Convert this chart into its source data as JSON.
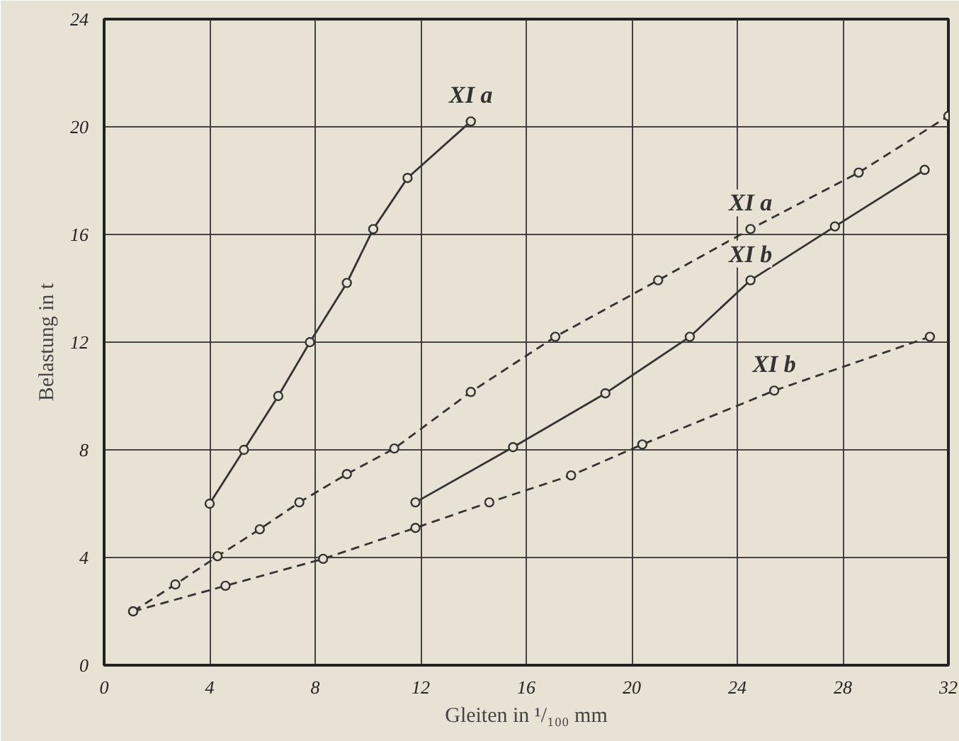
{
  "chart_data": {
    "type": "line",
    "xlabel": "Gleiten in ¹/₁₀₀ mm",
    "ylabel": "Belastung in t",
    "xlim": [
      0,
      32
    ],
    "ylim": [
      0,
      24
    ],
    "xticks": [
      0,
      4,
      8,
      12,
      16,
      20,
      24,
      28,
      32
    ],
    "yticks": [
      0,
      4,
      8,
      12,
      16,
      20,
      24
    ],
    "grid": true,
    "marker": "circle",
    "series": [
      {
        "name": "XI a",
        "color": "#333333",
        "line_style": "solid",
        "x": [
          4,
          5.3,
          6.6,
          7.8,
          9.2,
          10.2,
          11.5,
          13.9
        ],
        "values": [
          6,
          8,
          10,
          12,
          14.2,
          16.2,
          18.1,
          20.2
        ]
      },
      {
        "name": "XI a",
        "color": "#333333",
        "line_style": "dashed",
        "x": [
          1.1,
          2.7,
          4.3,
          5.9,
          7.4,
          9.2,
          11.0,
          13.9,
          17.1,
          21.0,
          24.5,
          28.6,
          32
        ],
        "values": [
          2,
          3,
          4.05,
          5.05,
          6.05,
          7.1,
          8.05,
          10.15,
          12.2,
          14.3,
          16.2,
          18.3,
          20.4
        ]
      },
      {
        "name": "XI b",
        "color": "#333333",
        "line_style": "solid",
        "x": [
          11.8,
          15.5,
          19.0,
          22.2,
          24.5,
          27.7,
          31.1
        ],
        "values": [
          6.05,
          8.1,
          10.1,
          12.2,
          14.3,
          16.3,
          18.4
        ]
      },
      {
        "name": "XI b",
        "color": "#333333",
        "line_style": "dashed",
        "x": [
          1.1,
          4.6,
          8.3,
          11.8,
          14.6,
          17.7,
          20.4,
          25.4,
          31.3
        ],
        "values": [
          2,
          2.95,
          3.95,
          5.1,
          6.05,
          7.05,
          8.2,
          10.2,
          12.2
        ]
      }
    ]
  }
}
